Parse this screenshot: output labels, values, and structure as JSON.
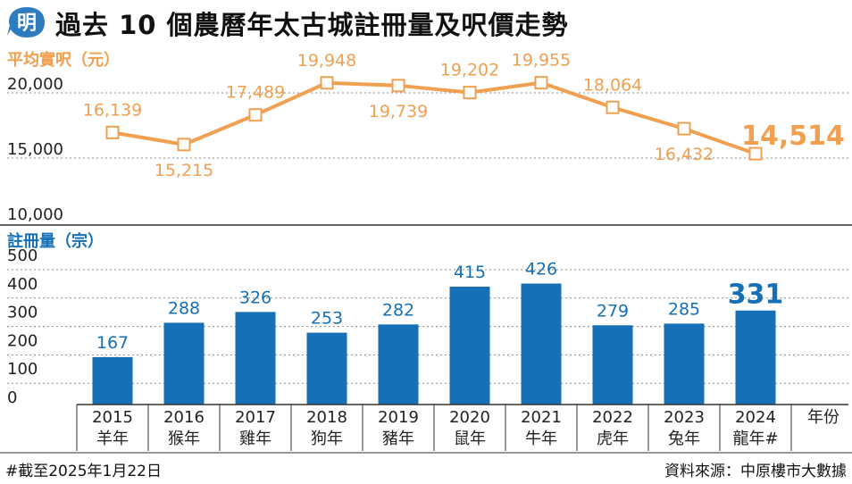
{
  "header": {
    "logo_char": "明",
    "title": "過去 10 個農曆年太古城註冊量及呎價走勢"
  },
  "footer": {
    "note": "#截至2025年1月22日",
    "source": "資料來源：中原樓市大數據"
  },
  "colors": {
    "line": "#F0A050",
    "bar": "#1670B8",
    "logo": "#2E7CC0"
  },
  "chart_data": [
    {
      "type": "line",
      "title": "平均實呎（元）",
      "categories": [
        "2015",
        "2016",
        "2017",
        "2018",
        "2019",
        "2020",
        "2021",
        "2022",
        "2023",
        "2024"
      ],
      "values": [
        16139,
        15215,
        17489,
        19948,
        19739,
        19202,
        19955,
        18064,
        16432,
        14514
      ],
      "value_labels": [
        "16,139",
        "15,215",
        "17,489",
        "19,948",
        "19,739",
        "19,202",
        "19,955",
        "18,064",
        "16,432",
        "14,514"
      ],
      "ylim": [
        10000,
        20000
      ],
      "yticks": [
        "10,000",
        "15,000",
        "20,000"
      ],
      "ytick_values": [
        10000,
        15000,
        20000
      ],
      "grid": true
    },
    {
      "type": "bar",
      "title": "註冊量（宗）",
      "categories": [
        "2015",
        "2016",
        "2017",
        "2018",
        "2019",
        "2020",
        "2021",
        "2022",
        "2023",
        "2024"
      ],
      "sublabels": [
        "羊年",
        "猴年",
        "雞年",
        "狗年",
        "豬年",
        "鼠年",
        "牛年",
        "虎年",
        "兔年",
        "龍年#"
      ],
      "values": [
        167,
        288,
        326,
        253,
        282,
        415,
        426,
        279,
        285,
        331
      ],
      "ylim": [
        0,
        500
      ],
      "yticks": [
        "0",
        "100",
        "200",
        "300",
        "400",
        "500"
      ],
      "ytick_values": [
        0,
        100,
        200,
        300,
        400,
        500
      ],
      "x_axis_label": "年份",
      "grid": true
    }
  ]
}
